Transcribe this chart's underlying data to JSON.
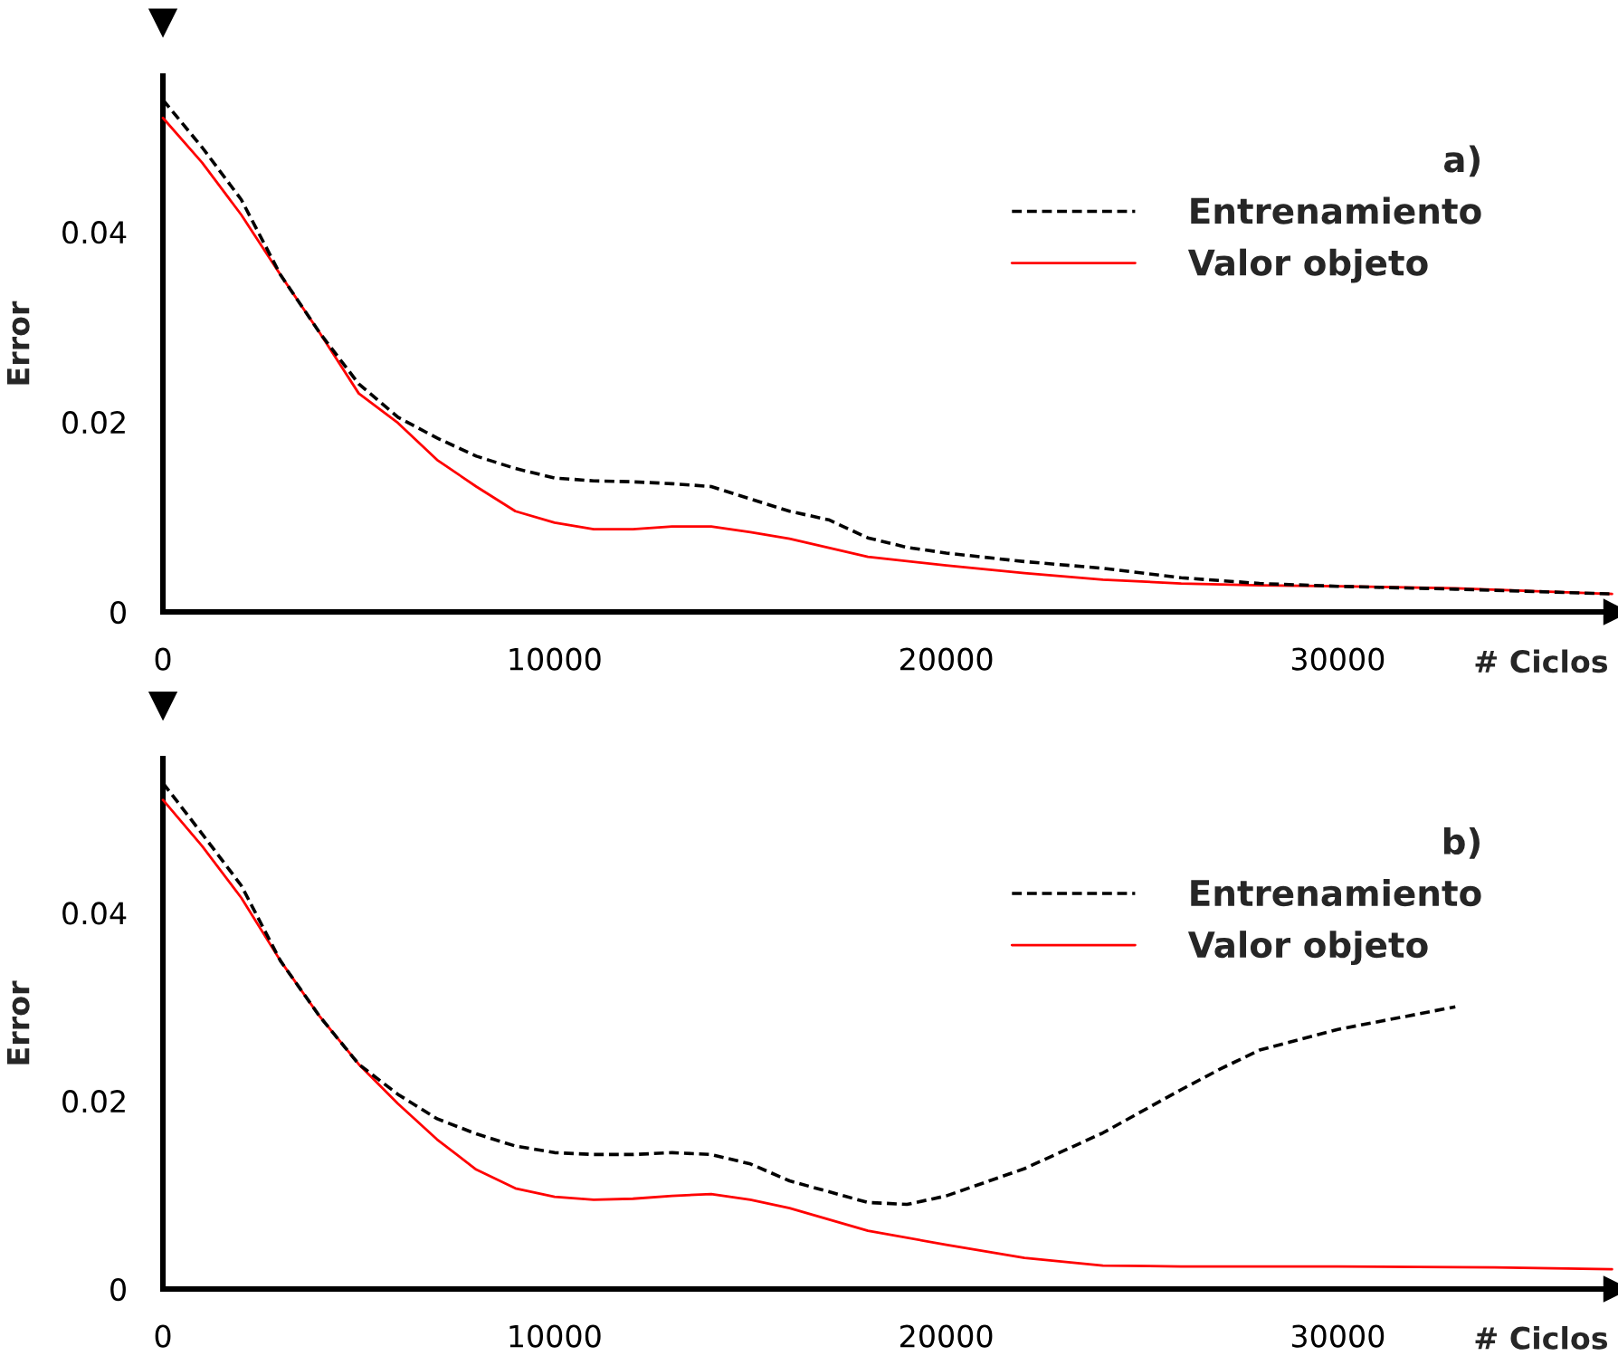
{
  "chart_data": [
    {
      "type": "line",
      "xlabel": "# Ciclos",
      "ylabel": "Error",
      "legend_title": "a)",
      "legend": "top right",
      "grid": false,
      "marker": "none",
      "xlim": [
        0,
        37100
      ],
      "xticks": [
        0,
        10000,
        20000,
        30000
      ],
      "ylim": [
        0,
        0.0564
      ],
      "yticks": [
        0,
        0.02,
        0.04
      ],
      "series": [
        {
          "name": "Entrenamiento",
          "color": "#000000",
          "line_style": "dashed",
          "x": [
            0,
            1000,
            2000,
            3000,
            4000,
            5000,
            6000,
            7000,
            8000,
            9000,
            10000,
            11000,
            12000,
            13000,
            14000,
            15000,
            16000,
            17000,
            18000,
            19000,
            20000,
            22000,
            24000,
            26000,
            28000,
            30000,
            33000,
            37000
          ],
          "values": [
            0.0539,
            0.0489,
            0.0434,
            0.0355,
            0.0294,
            0.024,
            0.0205,
            0.0183,
            0.0164,
            0.0151,
            0.0141,
            0.0138,
            0.0137,
            0.0135,
            0.0132,
            0.0119,
            0.0106,
            0.0097,
            0.0078,
            0.0068,
            0.0062,
            0.0053,
            0.0046,
            0.0036,
            0.003,
            0.0027,
            0.0024,
            0.0019
          ]
        },
        {
          "name": "Valor objeto",
          "color": "#ff0000",
          "line_style": "solid",
          "x": [
            0,
            1000,
            2000,
            3000,
            4000,
            5000,
            6000,
            7000,
            8000,
            9000,
            10000,
            11000,
            12000,
            13000,
            14000,
            15000,
            16000,
            18000,
            20000,
            22000,
            24000,
            26000,
            28000,
            30000,
            33000,
            37000
          ],
          "values": [
            0.052,
            0.0473,
            0.0418,
            0.0355,
            0.0294,
            0.023,
            0.0199,
            0.016,
            0.0132,
            0.0106,
            0.0094,
            0.0087,
            0.0087,
            0.009,
            0.009,
            0.0084,
            0.0077,
            0.0058,
            0.0049,
            0.0041,
            0.0034,
            0.003,
            0.0028,
            0.0027,
            0.0025,
            0.0019
          ]
        }
      ]
    },
    {
      "type": "line",
      "xlabel": "# Ciclos",
      "ylabel": "Error",
      "legend_title": "b)",
      "legend": "top right",
      "grid": false,
      "marker": "none",
      "xlim": [
        0,
        37100
      ],
      "xticks": [
        0,
        10000,
        20000,
        30000
      ],
      "ylim": [
        0,
        0.0564
      ],
      "yticks": [
        0,
        0.02,
        0.04
      ],
      "series": [
        {
          "name": "Entrenamiento",
          "color": "#000000",
          "line_style": "dashed",
          "x": [
            0,
            1000,
            2000,
            3000,
            4000,
            5000,
            6000,
            7000,
            8000,
            9000,
            10000,
            11000,
            12000,
            13000,
            14000,
            15000,
            16000,
            18000,
            19000,
            20000,
            22000,
            24000,
            26000,
            27000,
            28000,
            30000,
            32000,
            33000
          ],
          "values": [
            0.0538,
            0.0484,
            0.0429,
            0.0349,
            0.029,
            0.0239,
            0.0207,
            0.0181,
            0.0165,
            0.0152,
            0.0145,
            0.0143,
            0.0143,
            0.0145,
            0.0143,
            0.0133,
            0.0115,
            0.0092,
            0.009,
            0.0099,
            0.0128,
            0.0166,
            0.0212,
            0.0234,
            0.0254,
            0.0276,
            0.0292,
            0.03
          ]
        },
        {
          "name": "Valor objeto",
          "color": "#ff0000",
          "line_style": "solid",
          "x": [
            0,
            1000,
            2000,
            3000,
            4000,
            5000,
            6000,
            7000,
            8000,
            9000,
            10000,
            11000,
            12000,
            13000,
            14000,
            15000,
            16000,
            18000,
            20000,
            22000,
            24000,
            26000,
            30000,
            34000,
            37000
          ],
          "values": [
            0.052,
            0.0471,
            0.0416,
            0.0349,
            0.029,
            0.0239,
            0.0197,
            0.0159,
            0.0127,
            0.0107,
            0.0098,
            0.0095,
            0.0096,
            0.0099,
            0.0101,
            0.0095,
            0.0086,
            0.0062,
            0.0047,
            0.0033,
            0.0025,
            0.0024,
            0.0024,
            0.0023,
            0.0021
          ]
        }
      ]
    }
  ]
}
